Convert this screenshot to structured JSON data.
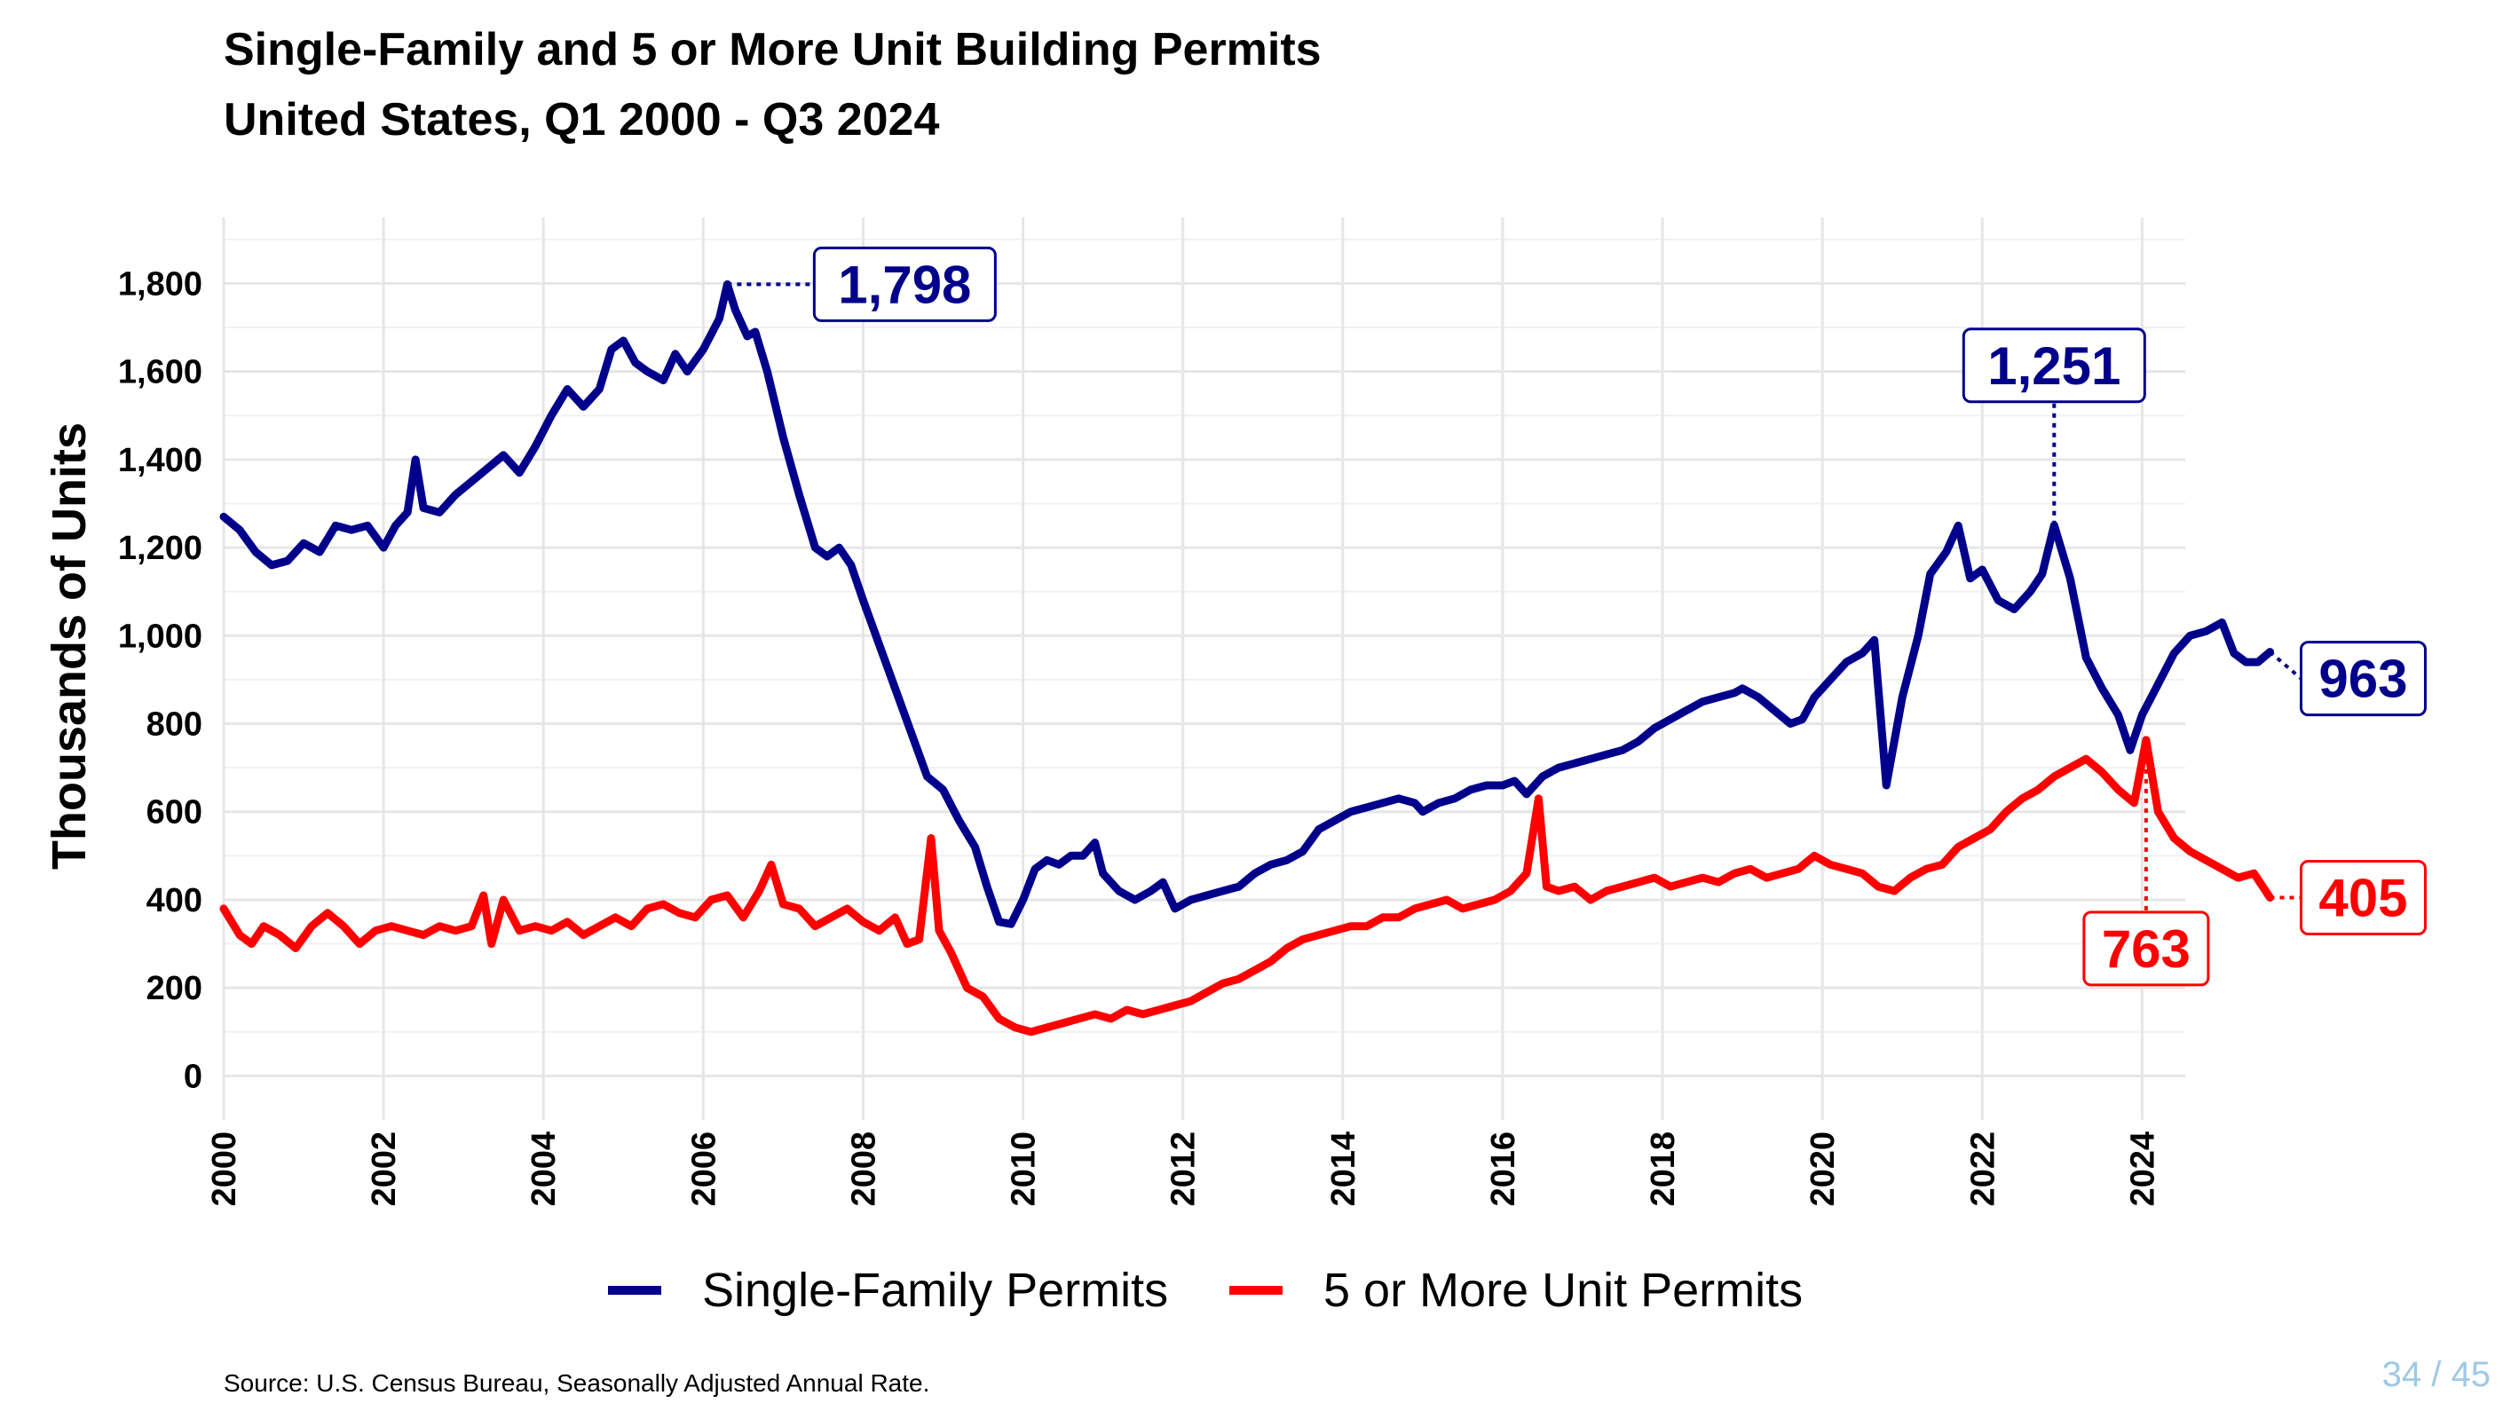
{
  "slide": {
    "page_number": "34 / 45"
  },
  "chart_data": {
    "type": "line",
    "title": "Single-Family and 5 or More Unit Building Permits",
    "subtitle": "United States, Q1 2000 - Q3 2024",
    "xlabel": "",
    "ylabel": "Thousands of Units",
    "source": "Source: U.S. Census Bureau, Seasonally Adjusted Annual Rate.",
    "xlim": [
      2000.0,
      2024.7
    ],
    "ylim": [
      -100,
      1950
    ],
    "y_ticks": [
      0,
      200,
      400,
      600,
      800,
      1000,
      1200,
      1400,
      1600,
      1800
    ],
    "y_tick_labels": [
      "0",
      "200",
      "400",
      "600",
      "800",
      "1,000",
      "1,200",
      "1,400",
      "1,600",
      "1,800"
    ],
    "x_ticks": [
      2000,
      2002,
      2004,
      2006,
      2008,
      2010,
      2012,
      2014,
      2016,
      2018,
      2020,
      2022,
      2024
    ],
    "x_tick_labels": [
      "2000",
      "2002",
      "2004",
      "2006",
      "2008",
      "2010",
      "2012",
      "2014",
      "2016",
      "2018",
      "2020",
      "2022",
      "2024"
    ],
    "grid": true,
    "legend_position": "bottom",
    "series": [
      {
        "name": "Single-Family Permits",
        "color": "#00008b",
        "points": [
          [
            2000.0,
            1270
          ],
          [
            2000.2,
            1240
          ],
          [
            2000.4,
            1190
          ],
          [
            2000.6,
            1160
          ],
          [
            2000.8,
            1170
          ],
          [
            2001.0,
            1210
          ],
          [
            2001.2,
            1190
          ],
          [
            2001.4,
            1250
          ],
          [
            2001.6,
            1240
          ],
          [
            2001.8,
            1250
          ],
          [
            2002.0,
            1200
          ],
          [
            2002.15,
            1250
          ],
          [
            2002.3,
            1280
          ],
          [
            2002.4,
            1400
          ],
          [
            2002.5,
            1290
          ],
          [
            2002.7,
            1280
          ],
          [
            2002.9,
            1320
          ],
          [
            2003.1,
            1350
          ],
          [
            2003.3,
            1380
          ],
          [
            2003.5,
            1410
          ],
          [
            2003.7,
            1370
          ],
          [
            2003.9,
            1430
          ],
          [
            2004.1,
            1500
          ],
          [
            2004.3,
            1560
          ],
          [
            2004.5,
            1520
          ],
          [
            2004.7,
            1560
          ],
          [
            2004.85,
            1650
          ],
          [
            2005.0,
            1670
          ],
          [
            2005.15,
            1620
          ],
          [
            2005.3,
            1600
          ],
          [
            2005.5,
            1580
          ],
          [
            2005.65,
            1640
          ],
          [
            2005.8,
            1600
          ],
          [
            2006.0,
            1650
          ],
          [
            2006.2,
            1720
          ],
          [
            2006.3,
            1798
          ],
          [
            2006.4,
            1740
          ],
          [
            2006.55,
            1680
          ],
          [
            2006.65,
            1690
          ],
          [
            2006.8,
            1600
          ],
          [
            2007.0,
            1450
          ],
          [
            2007.2,
            1320
          ],
          [
            2007.4,
            1200
          ],
          [
            2007.55,
            1180
          ],
          [
            2007.7,
            1200
          ],
          [
            2007.85,
            1160
          ],
          [
            2008.0,
            1080
          ],
          [
            2008.2,
            980
          ],
          [
            2008.4,
            880
          ],
          [
            2008.6,
            780
          ],
          [
            2008.8,
            680
          ],
          [
            2009.0,
            650
          ],
          [
            2009.2,
            580
          ],
          [
            2009.4,
            520
          ],
          [
            2009.55,
            430
          ],
          [
            2009.7,
            350
          ],
          [
            2009.85,
            345
          ],
          [
            2010.0,
            400
          ],
          [
            2010.15,
            470
          ],
          [
            2010.3,
            490
          ],
          [
            2010.45,
            480
          ],
          [
            2010.6,
            500
          ],
          [
            2010.75,
            500
          ],
          [
            2010.9,
            530
          ],
          [
            2011.0,
            460
          ],
          [
            2011.2,
            420
          ],
          [
            2011.4,
            400
          ],
          [
            2011.6,
            420
          ],
          [
            2011.75,
            440
          ],
          [
            2011.9,
            380
          ],
          [
            2012.1,
            400
          ],
          [
            2012.3,
            410
          ],
          [
            2012.5,
            420
          ],
          [
            2012.7,
            430
          ],
          [
            2012.9,
            460
          ],
          [
            2013.1,
            480
          ],
          [
            2013.3,
            490
          ],
          [
            2013.5,
            510
          ],
          [
            2013.7,
            560
          ],
          [
            2013.9,
            580
          ],
          [
            2014.1,
            600
          ],
          [
            2014.3,
            610
          ],
          [
            2014.5,
            620
          ],
          [
            2014.7,
            630
          ],
          [
            2014.9,
            620
          ],
          [
            2015.0,
            600
          ],
          [
            2015.2,
            620
          ],
          [
            2015.4,
            630
          ],
          [
            2015.6,
            650
          ],
          [
            2015.8,
            660
          ],
          [
            2016.0,
            660
          ],
          [
            2016.15,
            670
          ],
          [
            2016.3,
            640
          ],
          [
            2016.5,
            680
          ],
          [
            2016.7,
            700
          ],
          [
            2016.9,
            710
          ],
          [
            2017.1,
            720
          ],
          [
            2017.3,
            730
          ],
          [
            2017.5,
            740
          ],
          [
            2017.7,
            760
          ],
          [
            2017.9,
            790
          ],
          [
            2018.1,
            810
          ],
          [
            2018.3,
            830
          ],
          [
            2018.5,
            850
          ],
          [
            2018.7,
            860
          ],
          [
            2018.9,
            870
          ],
          [
            2019.0,
            880
          ],
          [
            2019.2,
            860
          ],
          [
            2019.4,
            830
          ],
          [
            2019.6,
            800
          ],
          [
            2019.75,
            810
          ],
          [
            2019.9,
            860
          ],
          [
            2020.1,
            900
          ],
          [
            2020.3,
            940
          ],
          [
            2020.5,
            960
          ],
          [
            2020.65,
            990
          ],
          [
            2020.8,
            660
          ],
          [
            2021.0,
            860
          ],
          [
            2021.2,
            1000
          ],
          [
            2021.35,
            1140
          ],
          [
            2021.55,
            1190
          ],
          [
            2021.7,
            1250
          ],
          [
            2021.85,
            1130
          ],
          [
            2022.0,
            1150
          ],
          [
            2022.2,
            1080
          ],
          [
            2022.4,
            1060
          ],
          [
            2022.6,
            1100
          ],
          [
            2022.75,
            1140
          ],
          [
            2022.9,
            1251
          ],
          [
            2023.1,
            1130
          ],
          [
            2023.3,
            950
          ],
          [
            2023.5,
            880
          ],
          [
            2023.7,
            820
          ],
          [
            2023.85,
            740
          ],
          [
            2024.0,
            820
          ],
          [
            2024.2,
            890
          ],
          [
            2024.4,
            960
          ],
          [
            2024.6,
            1000
          ],
          [
            2024.8,
            1010
          ],
          [
            2025.0,
            1030
          ],
          [
            2025.15,
            960
          ],
          [
            2025.3,
            940
          ],
          [
            2025.45,
            940
          ],
          [
            2025.6,
            963
          ]
        ]
      },
      {
        "name": "5 or More Unit Permits",
        "color": "#ff0000",
        "points": [
          [
            2000.0,
            380
          ],
          [
            2000.2,
            320
          ],
          [
            2000.35,
            300
          ],
          [
            2000.5,
            340
          ],
          [
            2000.7,
            320
          ],
          [
            2000.9,
            290
          ],
          [
            2001.1,
            340
          ],
          [
            2001.3,
            370
          ],
          [
            2001.5,
            340
          ],
          [
            2001.7,
            300
          ],
          [
            2001.9,
            330
          ],
          [
            2002.1,
            340
          ],
          [
            2002.3,
            330
          ],
          [
            2002.5,
            320
          ],
          [
            2002.7,
            340
          ],
          [
            2002.9,
            330
          ],
          [
            2003.1,
            340
          ],
          [
            2003.25,
            410
          ],
          [
            2003.35,
            300
          ],
          [
            2003.5,
            400
          ],
          [
            2003.7,
            330
          ],
          [
            2003.9,
            340
          ],
          [
            2004.1,
            330
          ],
          [
            2004.3,
            350
          ],
          [
            2004.5,
            320
          ],
          [
            2004.7,
            340
          ],
          [
            2004.9,
            360
          ],
          [
            2005.1,
            340
          ],
          [
            2005.3,
            380
          ],
          [
            2005.5,
            390
          ],
          [
            2005.7,
            370
          ],
          [
            2005.9,
            360
          ],
          [
            2006.1,
            400
          ],
          [
            2006.3,
            410
          ],
          [
            2006.5,
            360
          ],
          [
            2006.7,
            420
          ],
          [
            2006.85,
            480
          ],
          [
            2007.0,
            390
          ],
          [
            2007.2,
            380
          ],
          [
            2007.4,
            340
          ],
          [
            2007.6,
            360
          ],
          [
            2007.8,
            380
          ],
          [
            2008.0,
            350
          ],
          [
            2008.2,
            330
          ],
          [
            2008.4,
            360
          ],
          [
            2008.55,
            300
          ],
          [
            2008.7,
            310
          ],
          [
            2008.85,
            540
          ],
          [
            2008.95,
            330
          ],
          [
            2009.1,
            280
          ],
          [
            2009.3,
            200
          ],
          [
            2009.5,
            180
          ],
          [
            2009.7,
            130
          ],
          [
            2009.9,
            110
          ],
          [
            2010.1,
            100
          ],
          [
            2010.3,
            110
          ],
          [
            2010.5,
            120
          ],
          [
            2010.7,
            130
          ],
          [
            2010.9,
            140
          ],
          [
            2011.1,
            130
          ],
          [
            2011.3,
            150
          ],
          [
            2011.5,
            140
          ],
          [
            2011.7,
            150
          ],
          [
            2011.9,
            160
          ],
          [
            2012.1,
            170
          ],
          [
            2012.3,
            190
          ],
          [
            2012.5,
            210
          ],
          [
            2012.7,
            220
          ],
          [
            2012.9,
            240
          ],
          [
            2013.1,
            260
          ],
          [
            2013.3,
            290
          ],
          [
            2013.5,
            310
          ],
          [
            2013.7,
            320
          ],
          [
            2013.9,
            330
          ],
          [
            2014.1,
            340
          ],
          [
            2014.3,
            340
          ],
          [
            2014.5,
            360
          ],
          [
            2014.7,
            360
          ],
          [
            2014.9,
            380
          ],
          [
            2015.1,
            390
          ],
          [
            2015.3,
            400
          ],
          [
            2015.5,
            380
          ],
          [
            2015.7,
            390
          ],
          [
            2015.9,
            400
          ],
          [
            2016.1,
            420
          ],
          [
            2016.3,
            460
          ],
          [
            2016.45,
            630
          ],
          [
            2016.55,
            430
          ],
          [
            2016.7,
            420
          ],
          [
            2016.9,
            430
          ],
          [
            2017.1,
            400
          ],
          [
            2017.3,
            420
          ],
          [
            2017.5,
            430
          ],
          [
            2017.7,
            440
          ],
          [
            2017.9,
            450
          ],
          [
            2018.1,
            430
          ],
          [
            2018.3,
            440
          ],
          [
            2018.5,
            450
          ],
          [
            2018.7,
            440
          ],
          [
            2018.9,
            460
          ],
          [
            2019.1,
            470
          ],
          [
            2019.3,
            450
          ],
          [
            2019.5,
            460
          ],
          [
            2019.7,
            470
          ],
          [
            2019.9,
            500
          ],
          [
            2020.1,
            480
          ],
          [
            2020.3,
            470
          ],
          [
            2020.5,
            460
          ],
          [
            2020.7,
            430
          ],
          [
            2020.9,
            420
          ],
          [
            2021.1,
            450
          ],
          [
            2021.3,
            470
          ],
          [
            2021.5,
            480
          ],
          [
            2021.7,
            520
          ],
          [
            2021.9,
            540
          ],
          [
            2022.1,
            560
          ],
          [
            2022.3,
            600
          ],
          [
            2022.5,
            630
          ],
          [
            2022.7,
            650
          ],
          [
            2022.9,
            680
          ],
          [
            2023.1,
            700
          ],
          [
            2023.3,
            720
          ],
          [
            2023.5,
            690
          ],
          [
            2023.7,
            650
          ],
          [
            2023.9,
            620
          ],
          [
            2024.05,
            763
          ],
          [
            2024.2,
            600
          ],
          [
            2024.4,
            540
          ],
          [
            2024.6,
            510
          ],
          [
            2024.8,
            490
          ],
          [
            2025.0,
            470
          ],
          [
            2025.2,
            450
          ],
          [
            2025.4,
            460
          ],
          [
            2025.6,
            405
          ]
        ]
      }
    ],
    "annotations": [
      {
        "label": "1,798",
        "series": "Single-Family Permits",
        "x": 2006.3,
        "y": 1798
      },
      {
        "label": "1,251",
        "series": "Single-Family Permits",
        "x": 2022.9,
        "y": 1251
      },
      {
        "label": "963",
        "series": "Single-Family Permits",
        "x": 2025.6,
        "y": 963
      },
      {
        "label": "763",
        "series": "5 or More Unit Permits",
        "x": 2024.05,
        "y": 763
      },
      {
        "label": "405",
        "series": "5 or More Unit Permits",
        "x": 2025.6,
        "y": 405
      }
    ]
  }
}
